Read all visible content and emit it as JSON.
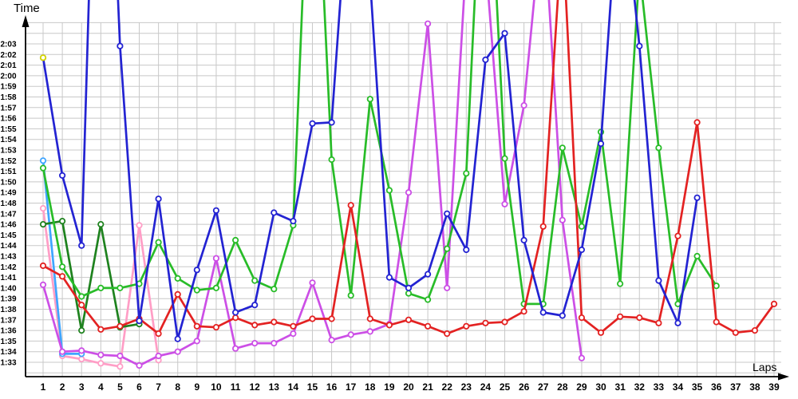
{
  "chart_data": {
    "type": "line",
    "title": "",
    "y_axis": {
      "title": "Time",
      "tick_labels": [
        "2:03",
        "2:02",
        "2:01",
        "2:00",
        "1:59",
        "1:58",
        "1:57",
        "1:56",
        "1:55",
        "1:54",
        "1:53",
        "1:52",
        "1:51",
        "1:50",
        "1:49",
        "1:48",
        "1:47",
        "1:46",
        "1:45",
        "1:44",
        "1:43",
        "1:42",
        "1:41",
        "1:40",
        "1:39",
        "1:38",
        "1:37",
        "1:36",
        "1:35",
        "1:34",
        "1:33"
      ]
    },
    "x_axis": {
      "title": "Laps",
      "tick_labels": [
        "1",
        "2",
        "3",
        "4",
        "5",
        "6",
        "7",
        "8",
        "9",
        "10",
        "11",
        "12",
        "13",
        "14",
        "15",
        "16",
        "17",
        "18",
        "19",
        "20",
        "21",
        "22",
        "23",
        "24",
        "25",
        "26",
        "27",
        "28",
        "29",
        "30",
        "31",
        "32",
        "33",
        "34",
        "35",
        "36",
        "37",
        "38",
        "39"
      ]
    },
    "grid": true,
    "legend": "none",
    "marker": "open-circle",
    "units": "lap time in seconds (93 = 1:33)",
    "offscale_note": "values above 125 seconds rise past the visible top of the plot; peaks are estimates",
    "series": [
      {
        "name": "pink",
        "color": "#FF9EC6",
        "lap_times_seconds": [
          107.5,
          93.6,
          93.3,
          92.9,
          92.6,
          105.9,
          93.2,
          null,
          null,
          null,
          null,
          null,
          null,
          null,
          null,
          null,
          null,
          null,
          null,
          null,
          null,
          null,
          null,
          null,
          null,
          null,
          null,
          null,
          null,
          null,
          null,
          null,
          null,
          null,
          null,
          null,
          null,
          null,
          null
        ]
      },
      {
        "name": "light-blue",
        "color": "#3FA5FF",
        "lap_times_seconds": [
          112,
          93.8,
          93.8,
          null,
          null,
          null,
          null,
          null,
          null,
          null,
          null,
          null,
          null,
          null,
          null,
          null,
          null,
          null,
          null,
          null,
          null,
          null,
          null,
          null,
          null,
          null,
          null,
          null,
          null,
          null,
          null,
          null,
          null,
          null,
          null,
          null,
          null,
          null,
          null
        ]
      },
      {
        "name": "dark-green",
        "color": "#1E821E",
        "lap_times_seconds": [
          106,
          106.3,
          96,
          106,
          96.3,
          96.6,
          null,
          null,
          null,
          null,
          null,
          null,
          null,
          null,
          null,
          null,
          null,
          null,
          null,
          null,
          null,
          null,
          null,
          null,
          null,
          null,
          null,
          null,
          null,
          null,
          null,
          null,
          null,
          null,
          null,
          null,
          null,
          null,
          null
        ]
      },
      {
        "name": "magenta",
        "color": "#CC4FE6",
        "lap_times_seconds": [
          100.3,
          94,
          94.1,
          93.7,
          93.6,
          92.7,
          93.6,
          94,
          95,
          102.8,
          94.3,
          94.8,
          94.8,
          95.7,
          100.5,
          95.1,
          95.6,
          95.9,
          96.6,
          109,
          124.9,
          100,
          131,
          131,
          107.9,
          117.2,
          136,
          106.4,
          93.4,
          null,
          null,
          null,
          null,
          null,
          null,
          null,
          null,
          null,
          null
        ]
      },
      {
        "name": "green",
        "color": "#28BC28",
        "lap_times_seconds": [
          111.3,
          102,
          99.2,
          100,
          100,
          100.4,
          104.3,
          100.9,
          99.8,
          100,
          104.5,
          100.7,
          99.9,
          105.9,
          150,
          112.1,
          99.3,
          117.8,
          109.2,
          99.5,
          98.9,
          103.7,
          110.8,
          148,
          112.2,
          98.5,
          98.5,
          113.2,
          105.8,
          114.7,
          100.4,
          130,
          113.2,
          98.5,
          103,
          100.2,
          null,
          null,
          null
        ]
      },
      {
        "name": "red",
        "color": "#E32222",
        "lap_times_seconds": [
          102.1,
          101.1,
          98.4,
          96.1,
          96.4,
          97.1,
          95.7,
          99.4,
          96.4,
          96.3,
          97.2,
          96.5,
          96.8,
          96.4,
          97.1,
          97.1,
          107.8,
          97.1,
          96.5,
          97,
          96.4,
          95.7,
          96.4,
          96.7,
          96.8,
          97.8,
          105.8,
          134,
          97.2,
          95.8,
          97.3,
          97.2,
          96.7,
          104.9,
          115.6,
          96.8,
          95.8,
          96,
          98.5
        ]
      },
      {
        "name": "blue",
        "color": "#2323D2",
        "lap_times_seconds": [
          121.7,
          110.6,
          104,
          165,
          122.8,
          96.9,
          108.4,
          95.2,
          101.7,
          107.3,
          97.7,
          98.4,
          107.1,
          106.3,
          115.5,
          115.6,
          141,
          129,
          101,
          100,
          101.3,
          107,
          103.6,
          121.5,
          124,
          104.5,
          97.7,
          97.4,
          103.6,
          113.6,
          140,
          122.8,
          100.7,
          96.7,
          108.5,
          null,
          null,
          null,
          null
        ]
      },
      {
        "name": "yellow",
        "color": "#D9D900",
        "lap_times_seconds": [
          121.7,
          null,
          null,
          null,
          null,
          null,
          null,
          null,
          null,
          null,
          null,
          null,
          null,
          null,
          null,
          null,
          null,
          null,
          null,
          null,
          null,
          null,
          null,
          null,
          null,
          null,
          null,
          null,
          null,
          null,
          null,
          null,
          null,
          null,
          null,
          null,
          null,
          null,
          null
        ]
      }
    ]
  }
}
